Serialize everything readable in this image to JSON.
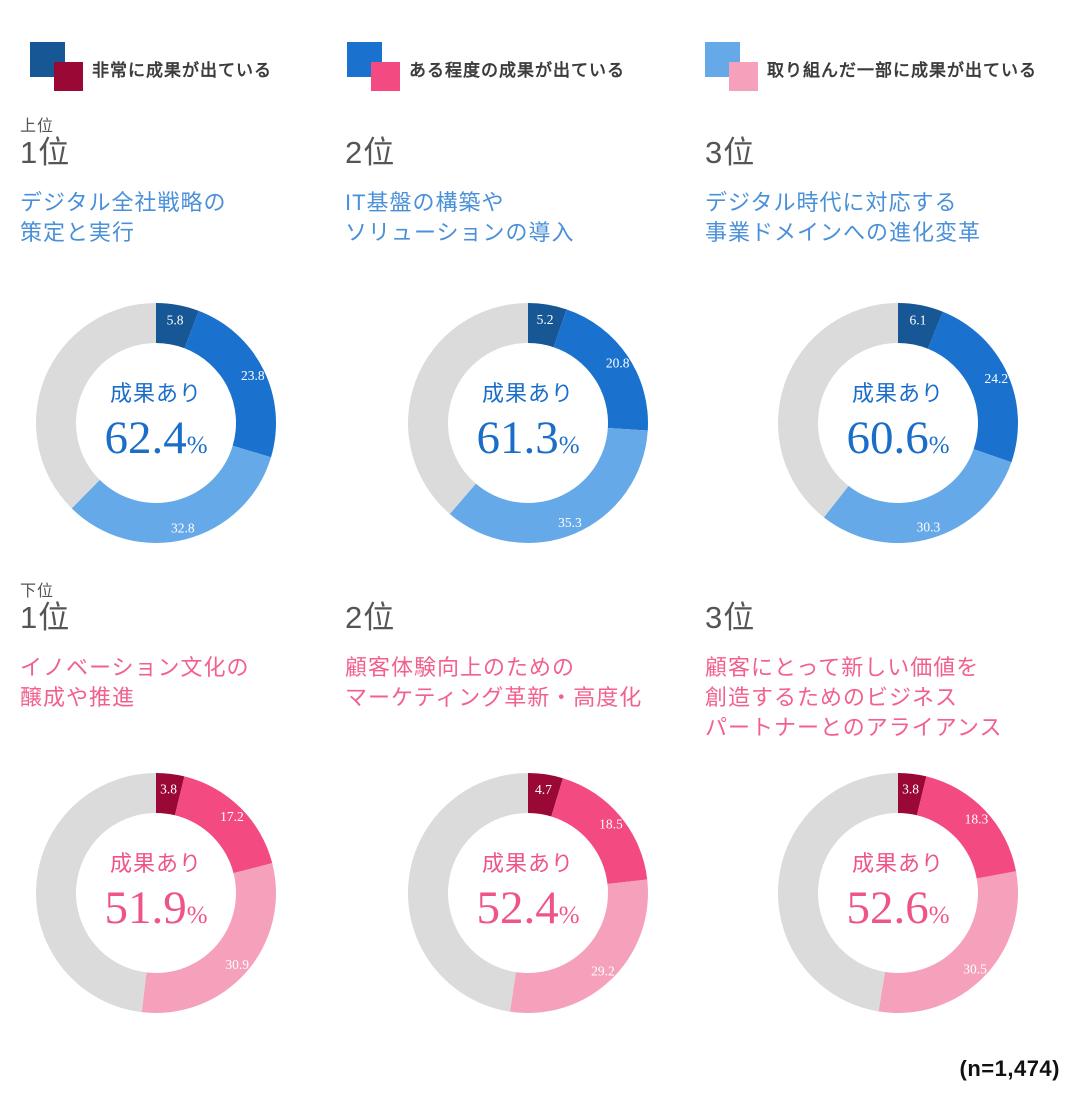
{
  "legend": {
    "items": [
      {
        "label": "非常に成果が出ている"
      },
      {
        "label": "ある程度の成果が出ている"
      },
      {
        "label": "取り組んだ一部に成果が出ている"
      }
    ]
  },
  "palette": {
    "top": {
      "segments": [
        "#175795",
        "#1B72CE",
        "#66A9E8"
      ],
      "rest": "#DBDBDB",
      "title": "#4A90D8",
      "center": "#1B6EC8"
    },
    "bottom": {
      "segments": [
        "#9A0936",
        "#F34A81",
        "#F5A1BC"
      ],
      "rest": "#DBDBDB",
      "title": "#F2618E",
      "center": "#EE5586"
    }
  },
  "chart_data": [
    {
      "type": "donut",
      "group": "top",
      "group_label": "上位",
      "rank_label": "1位",
      "title": "デジタル全社戦略の\n策定と実行",
      "center_label": "成果あり",
      "center_value": "62.4",
      "center_unit": "%",
      "values": [
        5.8,
        23.8,
        32.8
      ]
    },
    {
      "type": "donut",
      "group": "top",
      "rank_label": "2位",
      "title": "IT基盤の構築や\nソリューションの導入",
      "center_label": "成果あり",
      "center_value": "61.3",
      "center_unit": "%",
      "values": [
        5.2,
        20.8,
        35.3
      ]
    },
    {
      "type": "donut",
      "group": "top",
      "rank_label": "3位",
      "title": "デジタル時代に対応する\n事業ドメインへの進化変革",
      "center_label": "成果あり",
      "center_value": "60.6",
      "center_unit": "%",
      "values": [
        6.1,
        24.2,
        30.3
      ]
    },
    {
      "type": "donut",
      "group": "bottom",
      "group_label": "下位",
      "rank_label": "1位",
      "title": "イノベーション文化の\n醸成や推進",
      "center_label": "成果あり",
      "center_value": "51.9",
      "center_unit": "%",
      "values": [
        3.8,
        17.2,
        30.9
      ]
    },
    {
      "type": "donut",
      "group": "bottom",
      "rank_label": "2位",
      "title": "顧客体験向上のための\nマーケティング革新・高度化",
      "center_label": "成果あり",
      "center_value": "52.4",
      "center_unit": "%",
      "values": [
        4.7,
        18.5,
        29.2
      ]
    },
    {
      "type": "donut",
      "group": "bottom",
      "rank_label": "3位",
      "title": "顧客にとって新しい価値を\n創造するためのビジネス\nパートナーとのアライアンス",
      "center_label": "成果あり",
      "center_value": "52.6",
      "center_unit": "%",
      "values": [
        3.8,
        18.3,
        30.5
      ]
    }
  ],
  "footer": {
    "note": "(n=1,474)"
  }
}
